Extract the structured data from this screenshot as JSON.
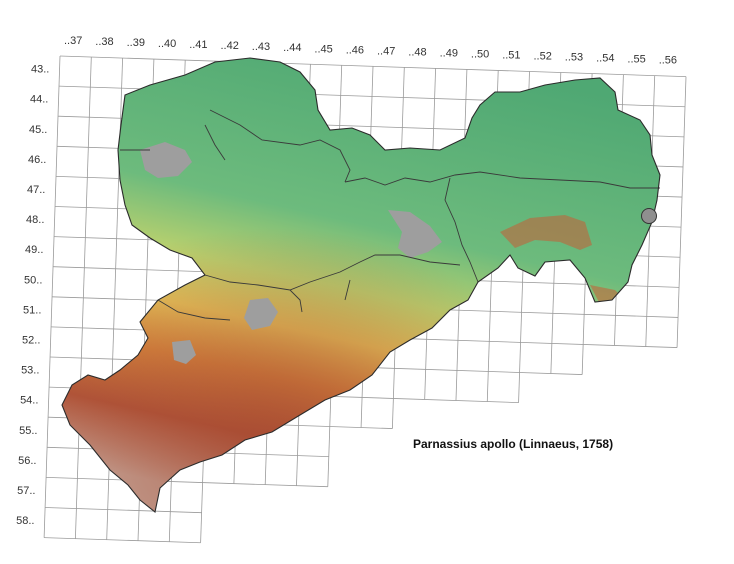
{
  "map": {
    "species": "Parnassius apollo (Linnaeus, 1758)",
    "columns": [
      "..37",
      "..38",
      "..39",
      "..40",
      "..41",
      "..42",
      "..43",
      "..44",
      "..45",
      "..46",
      "..47",
      "..48",
      "..49",
      "..50",
      "..51",
      "..52",
      "..53",
      "..54",
      "..55",
      "..56"
    ],
    "rows": [
      "43..",
      "44..",
      "45..",
      "46..",
      "47..",
      "48..",
      "49..",
      "50..",
      "51..",
      "52..",
      "53..",
      "54..",
      "55..",
      "56..",
      "57..",
      "58.."
    ],
    "legend_marker": {
      "cell": "..55 / 48..",
      "color": "#8f8f8f"
    },
    "colors": {
      "lowland": "#5fb27a",
      "mid": "#c9d46a",
      "upland": "#e3b04a",
      "mountain": "#b55a35",
      "peak": "#d8d0cc",
      "urban": "#9e9e9e"
    }
  }
}
